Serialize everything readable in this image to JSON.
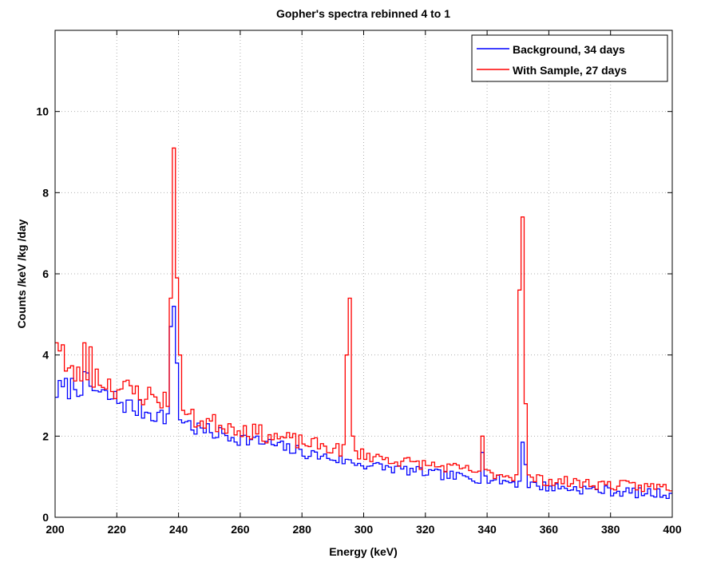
{
  "chart_data": {
    "type": "line",
    "step": true,
    "title": "Gopher's spectra rebinned 4 to 1",
    "xlabel": "Energy (keV)",
    "ylabel": "Counts /keV /kg /day",
    "xlim": [
      200,
      400
    ],
    "ylim": [
      0,
      12
    ],
    "xticks": [
      200,
      220,
      240,
      260,
      280,
      300,
      320,
      340,
      360,
      380,
      400
    ],
    "yticks": [
      0,
      2,
      4,
      6,
      8,
      10
    ],
    "x_tick_labels": [
      "200",
      "220",
      "240",
      "260",
      "280",
      "300",
      "320",
      "340",
      "360",
      "380",
      "400"
    ],
    "y_tick_labels": [
      "0",
      "2",
      "4",
      "6",
      "8",
      "10"
    ],
    "grid": true,
    "legend_position": "top-right",
    "bin_width": 1.0,
    "series": [
      {
        "name": "Background, 34 days",
        "color": "#0000ff",
        "anchors": [
          [
            200,
            3.1
          ],
          [
            205,
            3.2
          ],
          [
            210,
            3.3
          ],
          [
            215,
            3.0
          ],
          [
            220,
            2.9
          ],
          [
            225,
            2.7
          ],
          [
            230,
            2.6
          ],
          [
            235,
            2.5
          ],
          [
            240,
            2.5
          ],
          [
            245,
            2.2
          ],
          [
            250,
            2.1
          ],
          [
            260,
            1.95
          ],
          [
            270,
            1.8
          ],
          [
            280,
            1.6
          ],
          [
            290,
            1.45
          ],
          [
            300,
            1.3
          ],
          [
            310,
            1.2
          ],
          [
            320,
            1.1
          ],
          [
            330,
            1.0
          ],
          [
            340,
            0.95
          ],
          [
            350,
            0.85
          ],
          [
            360,
            0.75
          ],
          [
            370,
            0.7
          ],
          [
            380,
            0.65
          ],
          [
            390,
            0.6
          ],
          [
            400,
            0.58
          ]
        ],
        "noise": 0.28,
        "seed": 7,
        "peaks": [
          {
            "x": 237.5,
            "y": 4.7
          },
          {
            "x": 238.5,
            "y": 5.2
          },
          {
            "x": 239.5,
            "y": 3.8
          },
          {
            "x": 351.5,
            "y": 1.85
          },
          {
            "x": 352.5,
            "y": 1.3
          },
          {
            "x": 338.5,
            "y": 1.6
          }
        ]
      },
      {
        "name": "With Sample, 27 days",
        "color": "#ff0000",
        "anchors": [
          [
            200,
            3.8
          ],
          [
            205,
            3.5
          ],
          [
            210,
            3.6
          ],
          [
            215,
            3.4
          ],
          [
            220,
            3.2
          ],
          [
            225,
            3.1
          ],
          [
            230,
            3.0
          ],
          [
            235,
            2.9
          ],
          [
            240,
            2.7
          ],
          [
            245,
            2.4
          ],
          [
            250,
            2.35
          ],
          [
            260,
            2.2
          ],
          [
            270,
            2.0
          ],
          [
            280,
            1.85
          ],
          [
            290,
            1.7
          ],
          [
            300,
            1.55
          ],
          [
            310,
            1.4
          ],
          [
            320,
            1.3
          ],
          [
            330,
            1.2
          ],
          [
            340,
            1.1
          ],
          [
            350,
            1.0
          ],
          [
            360,
            0.9
          ],
          [
            370,
            0.85
          ],
          [
            380,
            0.8
          ],
          [
            390,
            0.75
          ],
          [
            400,
            0.75
          ]
        ],
        "noise": 0.3,
        "seed": 23,
        "peaks": [
          {
            "x": 200.5,
            "y": 4.3
          },
          {
            "x": 201.5,
            "y": 4.1
          },
          {
            "x": 202.5,
            "y": 4.25
          },
          {
            "x": 209.5,
            "y": 4.3
          },
          {
            "x": 211.5,
            "y": 4.2
          },
          {
            "x": 237.5,
            "y": 5.4
          },
          {
            "x": 238.5,
            "y": 9.1
          },
          {
            "x": 239.5,
            "y": 5.9
          },
          {
            "x": 240.5,
            "y": 4.0
          },
          {
            "x": 294.5,
            "y": 4.0
          },
          {
            "x": 295.5,
            "y": 5.4
          },
          {
            "x": 296.5,
            "y": 2.0
          },
          {
            "x": 338.5,
            "y": 2.0
          },
          {
            "x": 350.5,
            "y": 5.6
          },
          {
            "x": 351.5,
            "y": 7.4
          },
          {
            "x": 352.5,
            "y": 2.8
          }
        ]
      }
    ]
  }
}
